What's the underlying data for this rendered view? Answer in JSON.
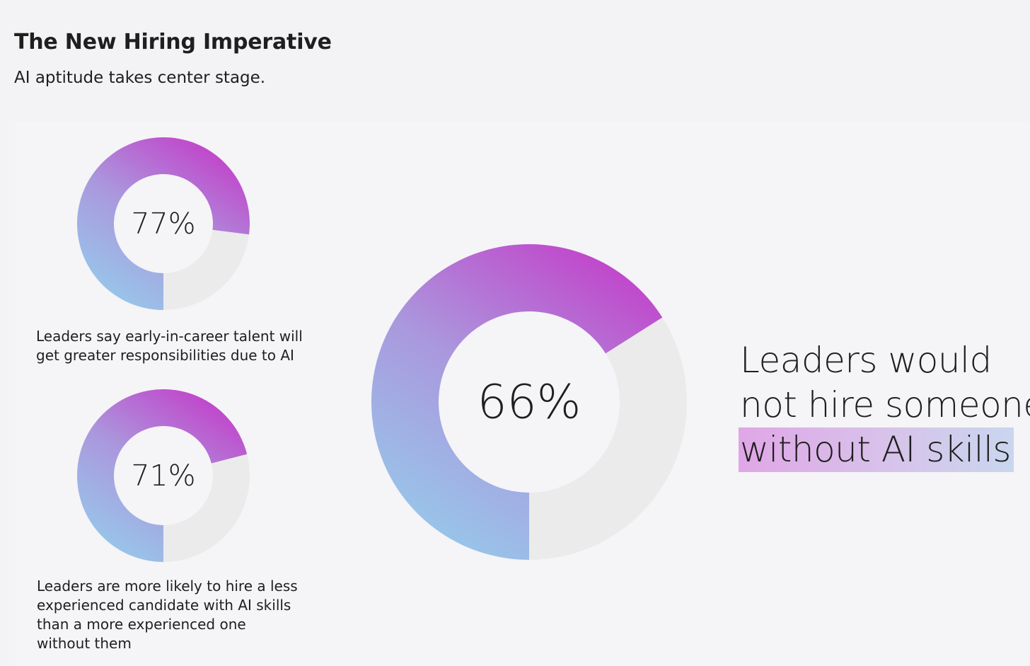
{
  "header": {
    "title": "The New Hiring Imperative",
    "subtitle": "AI aptitude takes center stage."
  },
  "colors": {
    "gradient_start": "#c43cc9",
    "gradient_mid": "#aa98dd",
    "gradient_end": "#95cdec",
    "remainder": "#ebebeb",
    "center": "#f5f4f7",
    "highlight_start": "#e0a6e6",
    "highlight_end": "#c9d6ee"
  },
  "statement": {
    "line1": "Leaders would",
    "line2": "not hire someone",
    "highlight": "without AI skills"
  },
  "chart_data": [
    {
      "type": "pie",
      "variant": "donut",
      "id": "donut-77",
      "value": 77,
      "label": "77%",
      "caption": "Leaders say early-in-career talent will get greater responsibilities due to AI"
    },
    {
      "type": "pie",
      "variant": "donut",
      "id": "donut-71",
      "value": 71,
      "label": "71%",
      "caption": "Leaders are more likely to hire a less experienced candidate with AI skills than a more experienced one without them"
    },
    {
      "type": "pie",
      "variant": "donut",
      "id": "donut-66",
      "value": 66,
      "label": "66%",
      "caption": ""
    }
  ]
}
